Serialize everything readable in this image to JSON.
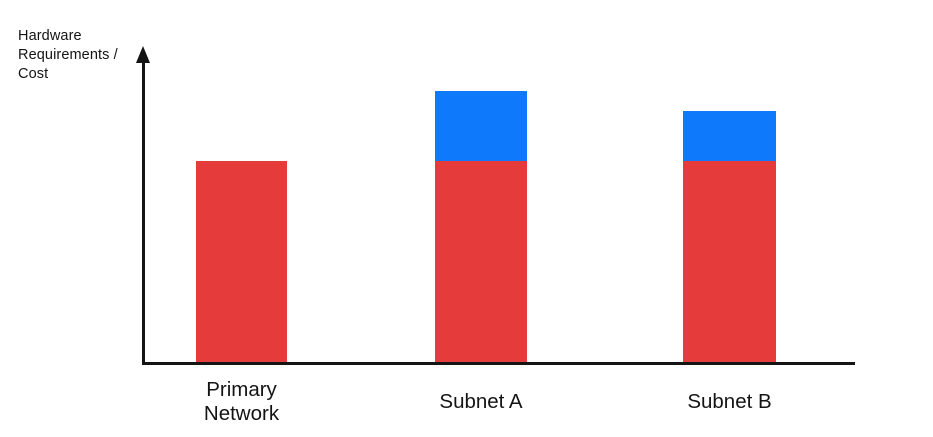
{
  "chart_data": {
    "type": "bar",
    "stacked": true,
    "title": "",
    "ylabel": "Hardware Requirements / Cost",
    "xlabel": "",
    "categories": [
      "Primary Network",
      "Subnet A",
      "Subnet B"
    ],
    "series": [
      {
        "name": "red-segment",
        "color": "#E53B3B",
        "values": [
          100,
          100,
          100
        ]
      },
      {
        "name": "blue-segment",
        "color": "#0E7AFB",
        "values": [
          0,
          35,
          25
        ]
      }
    ],
    "value_units": "relative (y-axis has no tick labels)",
    "ylim": [
      0,
      155
    ],
    "grid": false,
    "legend_position": "none",
    "axis_color": "#141414",
    "y_axis_arrow": true
  }
}
